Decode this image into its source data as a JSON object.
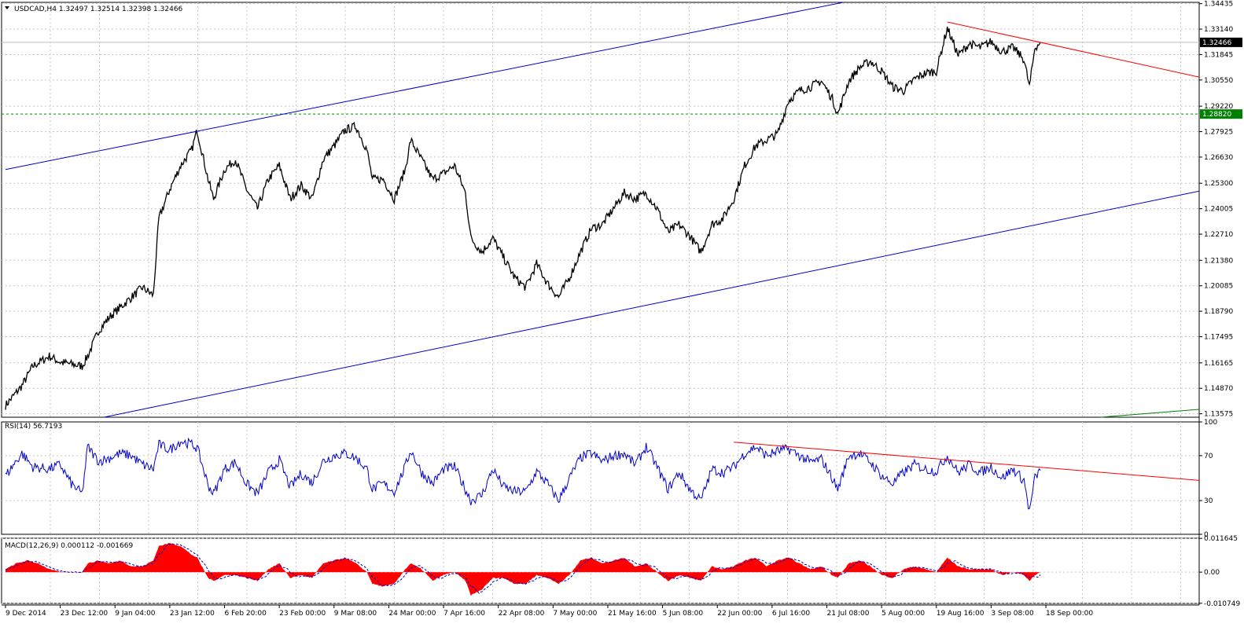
{
  "chart_data": [
    {
      "type": "candlestick-line",
      "symbol_header": "USDCAD,H4  1.32497 1.32514 1.32398 1.32466",
      "symbol": "USDCAD,H4",
      "ohlc": {
        "open": 1.32497,
        "high": 1.32514,
        "low": 1.32398,
        "close": 1.32466
      },
      "current_price_label": "1.32466",
      "level_price_label": "1.28820",
      "current_price": 1.32466,
      "level_price": 1.2882,
      "ylim": [
        1.134,
        1.345
      ],
      "y_ticks": [
        "1.34435",
        "1.33140",
        "1.31845",
        "1.30550",
        "1.29220",
        "1.27925",
        "1.26630",
        "1.25300",
        "1.24005",
        "1.22710",
        "1.21380",
        "1.20085",
        "1.18790",
        "1.17495",
        "1.16165",
        "1.14870",
        "1.13575"
      ],
      "x_labels": [
        "9 Dec 2014",
        "23 Dec 12:00",
        "9 Jan 04:00",
        "23 Jan 12:00",
        "6 Feb 20:00",
        "23 Feb 00:00",
        "9 Mar 08:00",
        "24 Mar 00:00",
        "7 Apr 16:00",
        "22 Apr 08:00",
        "7 May 00:00",
        "21 May 16:00",
        "5 Jun 08:00",
        "22 Jun 00:00",
        "6 Jul 16:00",
        "21 Jul 08:00",
        "5 Aug 00:00",
        "19 Aug 16:00",
        "3 Sep 08:00",
        "18 Sep 00:00"
      ],
      "x_index": [
        0,
        10,
        20,
        30,
        40,
        50,
        60,
        70,
        80,
        90,
        100,
        110,
        120,
        130,
        140,
        150,
        160,
        170,
        180,
        190
      ],
      "price_anchors": [
        [
          0,
          1.14
        ],
        [
          3,
          1.15
        ],
        [
          5,
          1.16
        ],
        [
          8,
          1.165
        ],
        [
          10,
          1.162
        ],
        [
          14,
          1.16
        ],
        [
          15,
          1.165
        ],
        [
          17,
          1.178
        ],
        [
          19,
          1.185
        ],
        [
          21,
          1.19
        ],
        [
          23,
          1.195
        ],
        [
          25,
          1.2
        ],
        [
          27,
          1.196
        ],
        [
          28,
          1.235
        ],
        [
          30,
          1.25
        ],
        [
          32,
          1.262
        ],
        [
          34,
          1.27
        ],
        [
          35,
          1.28
        ],
        [
          37,
          1.255
        ],
        [
          38,
          1.245
        ],
        [
          40,
          1.26
        ],
        [
          42,
          1.265
        ],
        [
          44,
          1.25
        ],
        [
          46,
          1.24
        ],
        [
          48,
          1.255
        ],
        [
          50,
          1.262
        ],
        [
          52,
          1.245
        ],
        [
          54,
          1.252
        ],
        [
          56,
          1.245
        ],
        [
          58,
          1.265
        ],
        [
          60,
          1.272
        ],
        [
          62,
          1.28
        ],
        [
          64,
          1.282
        ],
        [
          66,
          1.27
        ],
        [
          67,
          1.255
        ],
        [
          69,
          1.255
        ],
        [
          71,
          1.245
        ],
        [
          73,
          1.26
        ],
        [
          74,
          1.275
        ],
        [
          76,
          1.265
        ],
        [
          78,
          1.255
        ],
        [
          80,
          1.258
        ],
        [
          82,
          1.262
        ],
        [
          84,
          1.248
        ],
        [
          85,
          1.225
        ],
        [
          87,
          1.218
        ],
        [
          89,
          1.225
        ],
        [
          91,
          1.215
        ],
        [
          93,
          1.205
        ],
        [
          95,
          1.2
        ],
        [
          97,
          1.212
        ],
        [
          99,
          1.202
        ],
        [
          101,
          1.195
        ],
        [
          103,
          1.205
        ],
        [
          105,
          1.218
        ],
        [
          107,
          1.23
        ],
        [
          109,
          1.232
        ],
        [
          111,
          1.24
        ],
        [
          113,
          1.248
        ],
        [
          115,
          1.245
        ],
        [
          117,
          1.248
        ],
        [
          119,
          1.24
        ],
        [
          121,
          1.228
        ],
        [
          123,
          1.232
        ],
        [
          125,
          1.226
        ],
        [
          127,
          1.218
        ],
        [
          129,
          1.232
        ],
        [
          131,
          1.235
        ],
        [
          133,
          1.245
        ],
        [
          135,
          1.262
        ],
        [
          137,
          1.272
        ],
        [
          139,
          1.275
        ],
        [
          141,
          1.278
        ],
        [
          143,
          1.295
        ],
        [
          145,
          1.3
        ],
        [
          147,
          1.302
        ],
        [
          149,
          1.305
        ],
        [
          151,
          1.296
        ],
        [
          152,
          1.288
        ],
        [
          154,
          1.305
        ],
        [
          156,
          1.312
        ],
        [
          158,
          1.315
        ],
        [
          160,
          1.31
        ],
        [
          162,
          1.302
        ],
        [
          164,
          1.3
        ],
        [
          166,
          1.306
        ],
        [
          168,
          1.309
        ],
        [
          170,
          1.31
        ],
        [
          172,
          1.332
        ],
        [
          174,
          1.318
        ],
        [
          176,
          1.324
        ],
        [
          178,
          1.322
        ],
        [
          180,
          1.325
        ],
        [
          182,
          1.32
        ],
        [
          184,
          1.322
        ],
        [
          186,
          1.316
        ],
        [
          187,
          1.302
        ],
        [
          188,
          1.322
        ],
        [
          189,
          1.3247
        ]
      ],
      "channel_upper": {
        "color": "#0000cc",
        "x": [
          0,
          153
        ],
        "y": [
          1.26,
          1.345
        ]
      },
      "channel_lower": {
        "color": "#0000cc",
        "x": [
          18,
          218
        ],
        "y": [
          1.134,
          1.249
        ]
      },
      "resistance_line": {
        "color": "#ff0000",
        "x": [
          172,
          218
        ],
        "y": [
          1.335,
          1.307
        ]
      },
      "green_line": {
        "color": "#008000",
        "x": [
          200,
          218
        ],
        "y": [
          1.134,
          1.138
        ]
      },
      "level_line": {
        "color": "#009900",
        "y": 1.2882
      }
    },
    {
      "type": "line",
      "title": "RSI(14) 56.7193",
      "y_ticks": [
        "100",
        "70",
        "30",
        "0"
      ],
      "ylim": [
        0,
        100
      ],
      "line_color": "#0000cc",
      "rsi_anchors": [
        [
          0,
          52
        ],
        [
          3,
          72
        ],
        [
          5,
          60
        ],
        [
          8,
          58
        ],
        [
          10,
          62
        ],
        [
          12,
          45
        ],
        [
          14,
          36
        ],
        [
          15,
          78
        ],
        [
          17,
          65
        ],
        [
          19,
          68
        ],
        [
          21,
          72
        ],
        [
          23,
          70
        ],
        [
          25,
          62
        ],
        [
          27,
          58
        ],
        [
          28,
          80
        ],
        [
          30,
          75
        ],
        [
          32,
          83
        ],
        [
          34,
          80
        ],
        [
          35,
          77
        ],
        [
          37,
          44
        ],
        [
          38,
          36
        ],
        [
          40,
          58
        ],
        [
          42,
          64
        ],
        [
          44,
          45
        ],
        [
          46,
          36
        ],
        [
          48,
          55
        ],
        [
          50,
          66
        ],
        [
          52,
          42
        ],
        [
          54,
          54
        ],
        [
          56,
          46
        ],
        [
          58,
          65
        ],
        [
          60,
          70
        ],
        [
          62,
          72
        ],
        [
          64,
          68
        ],
        [
          66,
          58
        ],
        [
          67,
          40
        ],
        [
          69,
          45
        ],
        [
          71,
          38
        ],
        [
          73,
          60
        ],
        [
          74,
          75
        ],
        [
          76,
          55
        ],
        [
          78,
          45
        ],
        [
          80,
          58
        ],
        [
          82,
          60
        ],
        [
          84,
          40
        ],
        [
          85,
          30
        ],
        [
          87,
          35
        ],
        [
          89,
          58
        ],
        [
          91,
          42
        ],
        [
          93,
          38
        ],
        [
          95,
          38
        ],
        [
          97,
          56
        ],
        [
          99,
          45
        ],
        [
          101,
          30
        ],
        [
          103,
          50
        ],
        [
          105,
          68
        ],
        [
          107,
          72
        ],
        [
          109,
          65
        ],
        [
          111,
          70
        ],
        [
          113,
          72
        ],
        [
          115,
          62
        ],
        [
          117,
          78
        ],
        [
          119,
          60
        ],
        [
          121,
          40
        ],
        [
          123,
          55
        ],
        [
          125,
          40
        ],
        [
          127,
          30
        ],
        [
          129,
          58
        ],
        [
          131,
          55
        ],
        [
          133,
          60
        ],
        [
          135,
          72
        ],
        [
          137,
          78
        ],
        [
          139,
          70
        ],
        [
          141,
          74
        ],
        [
          143,
          76
        ],
        [
          145,
          70
        ],
        [
          147,
          64
        ],
        [
          149,
          67
        ],
        [
          151,
          50
        ],
        [
          152,
          40
        ],
        [
          154,
          70
        ],
        [
          156,
          72
        ],
        [
          158,
          64
        ],
        [
          160,
          52
        ],
        [
          162,
          45
        ],
        [
          164,
          55
        ],
        [
          166,
          62
        ],
        [
          168,
          58
        ],
        [
          170,
          56
        ],
        [
          172,
          70
        ],
        [
          174,
          55
        ],
        [
          176,
          62
        ],
        [
          178,
          55
        ],
        [
          180,
          60
        ],
        [
          182,
          50
        ],
        [
          184,
          58
        ],
        [
          186,
          48
        ],
        [
          187,
          20
        ],
        [
          188,
          50
        ],
        [
          189,
          56.7193
        ]
      ],
      "trend_line": {
        "color": "#ff0000",
        "x": [
          133,
          218
        ],
        "y": [
          82,
          48
        ]
      }
    },
    {
      "type": "area",
      "title": "MACD(12,26,9) 0.000112 -0.001669",
      "y_ticks": [
        "0.011645",
        "0.00",
        "-0.010749"
      ],
      "ylim": [
        -0.0108,
        0.0117
      ],
      "fill_color": "#ff0000",
      "signal_color": "#0000cc",
      "macd_anchors": [
        [
          0,
          0.001
        ],
        [
          2,
          0.003
        ],
        [
          4,
          0.004
        ],
        [
          6,
          0.003
        ],
        [
          8,
          0.001
        ],
        [
          10,
          0.0
        ],
        [
          12,
          0.0
        ],
        [
          14,
          0.0
        ],
        [
          15,
          0.003
        ],
        [
          17,
          0.004
        ],
        [
          19,
          0.003
        ],
        [
          21,
          0.004
        ],
        [
          23,
          0.002
        ],
        [
          25,
          0.002
        ],
        [
          27,
          0.004
        ],
        [
          28,
          0.009
        ],
        [
          30,
          0.01
        ],
        [
          32,
          0.009
        ],
        [
          34,
          0.006
        ],
        [
          35,
          0.005
        ],
        [
          37,
          -0.002
        ],
        [
          38,
          -0.003
        ],
        [
          40,
          -0.001
        ],
        [
          42,
          -0.001
        ],
        [
          44,
          -0.002
        ],
        [
          46,
          -0.003
        ],
        [
          48,
          0.001
        ],
        [
          50,
          0.003
        ],
        [
          52,
          -0.002
        ],
        [
          54,
          -0.001
        ],
        [
          56,
          -0.002
        ],
        [
          58,
          0.003
        ],
        [
          60,
          0.004
        ],
        [
          62,
          0.005
        ],
        [
          64,
          0.003
        ],
        [
          66,
          0.0
        ],
        [
          67,
          -0.004
        ],
        [
          69,
          -0.005
        ],
        [
          71,
          -0.004
        ],
        [
          73,
          0.001
        ],
        [
          74,
          0.003
        ],
        [
          76,
          0.001
        ],
        [
          78,
          -0.003
        ],
        [
          80,
          -0.001
        ],
        [
          82,
          0.0
        ],
        [
          84,
          -0.003
        ],
        [
          85,
          -0.008
        ],
        [
          87,
          -0.006
        ],
        [
          89,
          -0.002
        ],
        [
          91,
          -0.002
        ],
        [
          93,
          -0.004
        ],
        [
          95,
          -0.004
        ],
        [
          97,
          -0.001
        ],
        [
          99,
          -0.002
        ],
        [
          101,
          -0.004
        ],
        [
          103,
          -0.001
        ],
        [
          105,
          0.004
        ],
        [
          107,
          0.005
        ],
        [
          109,
          0.003
        ],
        [
          111,
          0.004
        ],
        [
          113,
          0.005
        ],
        [
          115,
          0.002
        ],
        [
          117,
          0.003
        ],
        [
          119,
          0.0
        ],
        [
          121,
          -0.003
        ],
        [
          123,
          -0.001
        ],
        [
          125,
          -0.002
        ],
        [
          127,
          -0.003
        ],
        [
          129,
          0.002
        ],
        [
          131,
          0.001
        ],
        [
          133,
          0.002
        ],
        [
          135,
          0.004
        ],
        [
          137,
          0.005
        ],
        [
          139,
          0.002
        ],
        [
          141,
          0.004
        ],
        [
          143,
          0.005
        ],
        [
          145,
          0.003
        ],
        [
          147,
          0.001
        ],
        [
          149,
          0.002
        ],
        [
          151,
          -0.001
        ],
        [
          152,
          -0.002
        ],
        [
          154,
          0.003
        ],
        [
          156,
          0.004
        ],
        [
          158,
          0.002
        ],
        [
          160,
          -0.001
        ],
        [
          162,
          -0.002
        ],
        [
          164,
          0.001
        ],
        [
          166,
          0.002
        ],
        [
          168,
          0.001
        ],
        [
          170,
          0.0
        ],
        [
          172,
          0.005
        ],
        [
          174,
          0.002
        ],
        [
          176,
          0.001
        ],
        [
          178,
          0.001
        ],
        [
          180,
          0.001
        ],
        [
          182,
          -0.001
        ],
        [
          184,
          0.0
        ],
        [
          186,
          -0.001
        ],
        [
          187,
          -0.003
        ],
        [
          188,
          -0.001
        ],
        [
          189,
          0.000112
        ]
      ]
    }
  ]
}
